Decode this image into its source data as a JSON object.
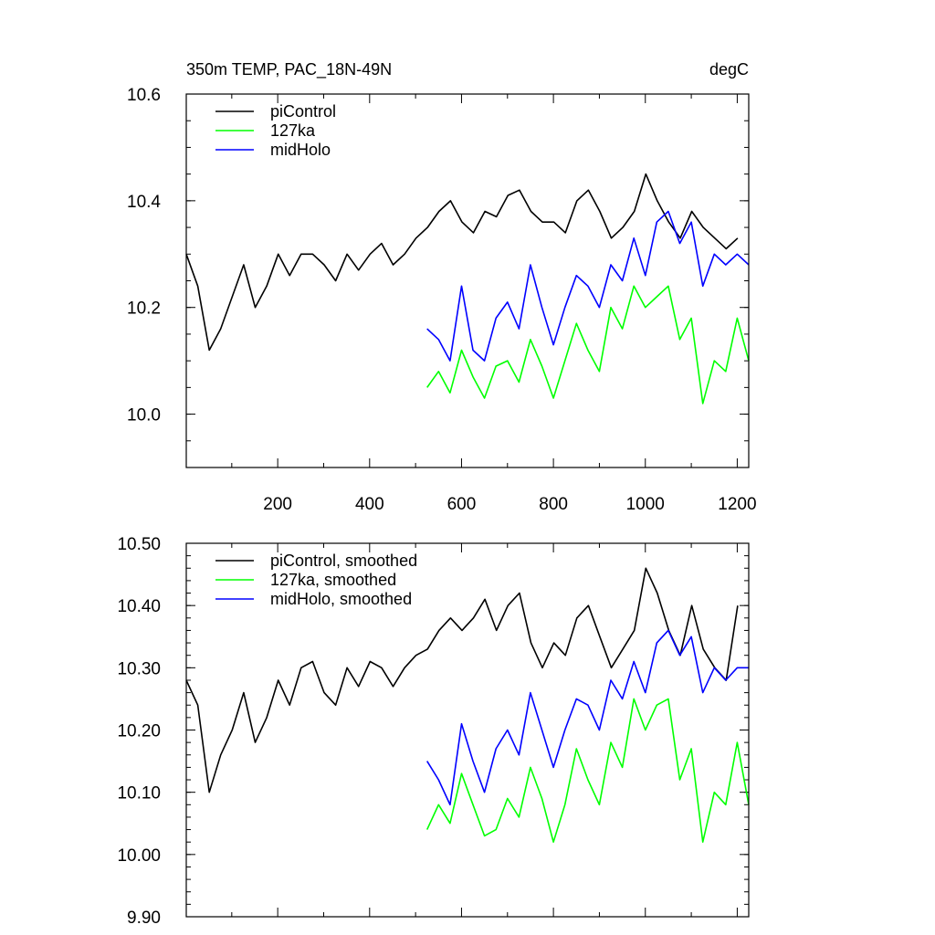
{
  "chart_data": [
    {
      "type": "line",
      "title": "350m TEMP, PAC_18N-49N",
      "units_label": "degC",
      "xlim": [
        1,
        1225
      ],
      "ylim": [
        9.9,
        10.6
      ],
      "x_ticks": [
        200,
        400,
        600,
        800,
        1000,
        1200
      ],
      "x_tick_labels": [
        "200",
        "400",
        "600",
        "800",
        "1000",
        "1200"
      ],
      "y_ticks": [
        10.0,
        10.2,
        10.4,
        10.6
      ],
      "y_tick_labels": [
        "10.0",
        "10.2",
        "10.4",
        "10.6"
      ],
      "y_minor_step": 0.05,
      "legend_position": "top-left",
      "series": [
        {
          "name": "piControl",
          "color": "#000000",
          "x_start": 1,
          "x_step": 25,
          "values": [
            10.3,
            10.24,
            10.12,
            10.16,
            10.22,
            10.28,
            10.2,
            10.24,
            10.3,
            10.26,
            10.3,
            10.3,
            10.28,
            10.25,
            10.3,
            10.27,
            10.3,
            10.32,
            10.28,
            10.3,
            10.33,
            10.35,
            10.38,
            10.4,
            10.36,
            10.34,
            10.38,
            10.37,
            10.41,
            10.42,
            10.38,
            10.36,
            10.36,
            10.34,
            10.4,
            10.42,
            10.38,
            10.33,
            10.35,
            10.38,
            10.45,
            10.4,
            10.36,
            10.33,
            10.38,
            10.35,
            10.33,
            10.31,
            10.33
          ]
        },
        {
          "name": "127ka",
          "color": "#00ff00",
          "x_start": 525,
          "x_step": 25,
          "values": [
            10.05,
            10.08,
            10.04,
            10.12,
            10.07,
            10.03,
            10.09,
            10.1,
            10.06,
            10.14,
            10.09,
            10.03,
            10.1,
            10.17,
            10.12,
            10.08,
            10.2,
            10.16,
            10.24,
            10.2,
            10.22,
            10.24,
            10.14,
            10.18,
            10.02,
            10.1,
            10.08,
            10.18,
            10.1
          ]
        },
        {
          "name": "midHolo",
          "color": "#0000ff",
          "x_start": 525,
          "x_step": 25,
          "values": [
            10.16,
            10.14,
            10.1,
            10.24,
            10.12,
            10.1,
            10.18,
            10.21,
            10.16,
            10.28,
            10.2,
            10.13,
            10.2,
            10.26,
            10.24,
            10.2,
            10.28,
            10.25,
            10.33,
            10.26,
            10.36,
            10.38,
            10.32,
            10.36,
            10.24,
            10.3,
            10.28,
            10.3,
            10.28
          ]
        }
      ]
    },
    {
      "type": "line",
      "xlim": [
        1,
        1225
      ],
      "ylim": [
        9.9,
        10.5
      ],
      "x_ticks": [
        200,
        400,
        600,
        800,
        1000,
        1200
      ],
      "y_ticks": [
        9.9,
        10.0,
        10.1,
        10.2,
        10.3,
        10.4,
        10.5
      ],
      "y_tick_labels": [
        "9.90",
        "10.00",
        "10.10",
        "10.20",
        "10.30",
        "10.40",
        "10.50"
      ],
      "y_minor_step": 0.02,
      "legend_position": "top-left",
      "series": [
        {
          "name": "piControl, smoothed",
          "color": "#000000",
          "x_start": 1,
          "x_step": 25,
          "values": [
            10.28,
            10.24,
            10.1,
            10.16,
            10.2,
            10.26,
            10.18,
            10.22,
            10.28,
            10.24,
            10.3,
            10.31,
            10.26,
            10.24,
            10.3,
            10.27,
            10.31,
            10.3,
            10.27,
            10.3,
            10.32,
            10.33,
            10.36,
            10.38,
            10.36,
            10.38,
            10.41,
            10.36,
            10.4,
            10.42,
            10.34,
            10.3,
            10.34,
            10.32,
            10.38,
            10.4,
            10.35,
            10.3,
            10.33,
            10.36,
            10.46,
            10.42,
            10.36,
            10.32,
            10.4,
            10.33,
            10.3,
            10.28,
            10.4
          ]
        },
        {
          "name": "127ka, smoothed",
          "color": "#00ff00",
          "x_start": 525,
          "x_step": 25,
          "values": [
            10.04,
            10.08,
            10.05,
            10.13,
            10.08,
            10.03,
            10.04,
            10.09,
            10.06,
            10.14,
            10.09,
            10.02,
            10.08,
            10.17,
            10.12,
            10.08,
            10.18,
            10.14,
            10.25,
            10.2,
            10.24,
            10.25,
            10.12,
            10.17,
            10.02,
            10.1,
            10.08,
            10.18,
            10.08
          ]
        },
        {
          "name": "midHolo, smoothed",
          "color": "#0000ff",
          "x_start": 525,
          "x_step": 25,
          "values": [
            10.15,
            10.12,
            10.08,
            10.21,
            10.15,
            10.1,
            10.17,
            10.2,
            10.16,
            10.26,
            10.2,
            10.14,
            10.2,
            10.25,
            10.24,
            10.2,
            10.28,
            10.25,
            10.31,
            10.26,
            10.34,
            10.36,
            10.32,
            10.35,
            10.26,
            10.3,
            10.28,
            10.3,
            10.3
          ]
        }
      ]
    }
  ]
}
